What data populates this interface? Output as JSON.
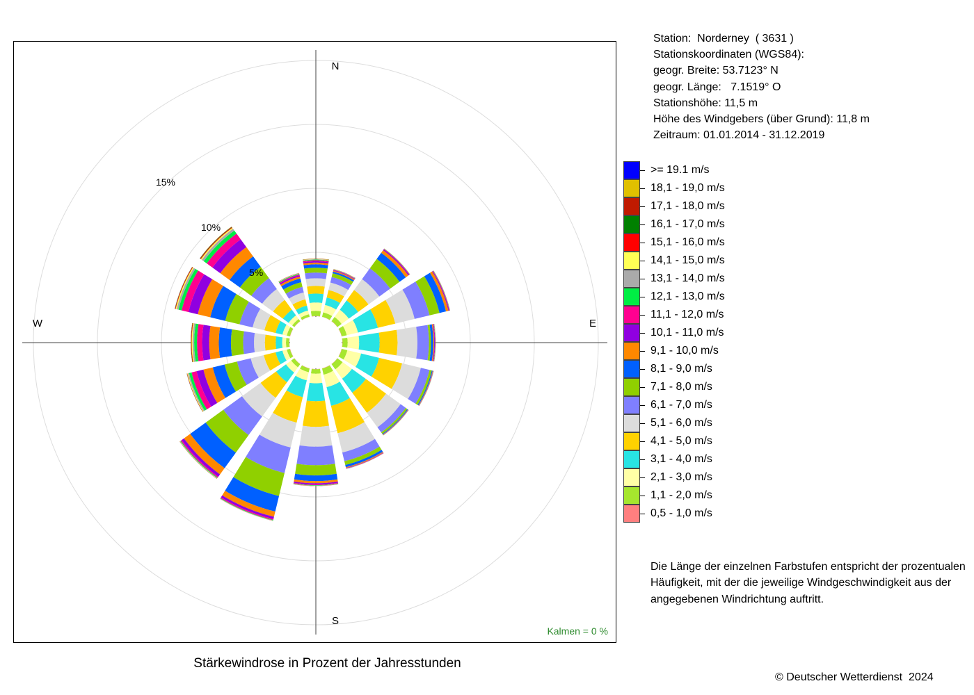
{
  "chart_data": {
    "type": "windrose",
    "title": "Stärkewindrose in Prozent der Jahresstunden",
    "directions": [
      "N",
      "NNE",
      "NE",
      "ENE",
      "E",
      "ESE",
      "SE",
      "SSE",
      "S",
      "SSW",
      "SW",
      "WSW",
      "W",
      "WNW",
      "NW",
      "NNW"
    ],
    "direction_labels": {
      "N": "N",
      "E": "E",
      "S": "S",
      "W": "W"
    },
    "radial_ticks": [
      {
        "value": 5,
        "label": "5%"
      },
      {
        "value": 10,
        "label": "10%"
      },
      {
        "value": 15,
        "label": "15%"
      }
    ],
    "radial_unit": "%",
    "calm_label": "Kalmen  =  0 %",
    "calm_percent": 0,
    "speed_classes": [
      {
        "label": "0,5 - 1,0 m/s",
        "color": "#ff7f7f"
      },
      {
        "label": "1,1 - 2,0 m/s",
        "color": "#a6e62e"
      },
      {
        "label": "2,1 - 3,0 m/s",
        "color": "#ffffa6"
      },
      {
        "label": "3,1 - 4,0 m/s",
        "color": "#28e4e4"
      },
      {
        "label": "4,1 - 5,0 m/s",
        "color": "#ffd200"
      },
      {
        "label": "5,1 - 6,0 m/s",
        "color": "#dcdcdc"
      },
      {
        "label": "6,1 - 7,0 m/s",
        "color": "#7f7fff"
      },
      {
        "label": "7,1 - 8,0 m/s",
        "color": "#90d000"
      },
      {
        "label": "8,1 - 9,0 m/s",
        "color": "#0060ff"
      },
      {
        "label": "9,1 - 10,0 m/s",
        "color": "#ff8800"
      },
      {
        "label": "10,1 - 11,0 m/s",
        "color": "#9000e0"
      },
      {
        "label": "11,1 - 12,0 m/s",
        "color": "#ff0090"
      },
      {
        "label": "12,1 - 13,0 m/s",
        "color": "#00ee44"
      },
      {
        "label": "13,1 - 14,0 m/s",
        "color": "#aaaaaa"
      },
      {
        "label": "14,1 - 15,0 m/s",
        "color": "#ffff55"
      },
      {
        "label": "15,1 - 16,0 m/s",
        "color": "#ff0000"
      },
      {
        "label": "16,1 - 17,0 m/s",
        "color": "#008000"
      },
      {
        "label": "17,1 - 18,0 m/s",
        "color": "#c01a00"
      },
      {
        "label": "18,1 - 19,0 m/s",
        "color": "#e0c000"
      },
      {
        "label": ">= 19.1 m/s",
        "color": "#0000ff"
      }
    ],
    "series": [
      {
        "direction": "N",
        "values": [
          0.02,
          0.4,
          0.65,
          0.7,
          0.6,
          0.6,
          0.45,
          0.38,
          0.26,
          0.14,
          0.1,
          0.08,
          0.05,
          0.03,
          0.02,
          0.01,
          0.01,
          0.01,
          0.005,
          0.005
        ]
      },
      {
        "direction": "NNE",
        "values": [
          0.02,
          0.35,
          0.6,
          0.6,
          0.6,
          0.6,
          0.45,
          0.3,
          0.13,
          0.08,
          0.04,
          0.03,
          0.02,
          0.01,
          0.01,
          0.005,
          0.005,
          0.005,
          0.003,
          0.002
        ]
      },
      {
        "direction": "NE",
        "values": [
          0.02,
          0.4,
          0.7,
          0.9,
          1.0,
          1.05,
          1.05,
          0.9,
          0.6,
          0.25,
          0.08,
          0.04,
          0.02,
          0.01,
          0.005,
          0.005,
          0.002,
          0.002,
          0.001,
          0.001
        ]
      },
      {
        "direction": "ENE",
        "values": [
          0.02,
          0.4,
          0.9,
          1.6,
          1.4,
          1.55,
          1.2,
          0.8,
          0.52,
          0.2,
          0.06,
          0.03,
          0.02,
          0.01,
          0.005,
          0.005,
          0.002,
          0.002,
          0.001,
          0.001
        ]
      },
      {
        "direction": "E",
        "values": [
          0.02,
          0.4,
          0.9,
          1.6,
          1.4,
          1.55,
          0.9,
          0.16,
          0.18,
          0.07,
          0.05,
          0.03,
          0.02,
          0.01,
          0.005,
          0.005,
          0.002,
          0.002,
          0.001,
          0.001
        ]
      },
      {
        "direction": "ESE",
        "values": [
          0.02,
          0.45,
          1.1,
          1.45,
          1.85,
          1.5,
          0.7,
          0.18,
          0.07,
          0.03,
          0.02,
          0.01,
          0.01,
          0.005,
          0.005,
          0.003,
          0.002,
          0.002,
          0.001,
          0.001
        ]
      },
      {
        "direction": "SE",
        "values": [
          0.02,
          0.5,
          0.9,
          1.35,
          1.95,
          1.4,
          0.5,
          0.14,
          0.06,
          0.03,
          0.02,
          0.01,
          0.01,
          0.005,
          0.005,
          0.003,
          0.002,
          0.002,
          0.001,
          0.001
        ]
      },
      {
        "direction": "SSE",
        "values": [
          0.02,
          0.5,
          1.0,
          1.5,
          2.2,
          1.55,
          0.7,
          0.3,
          0.18,
          0.06,
          0.03,
          0.02,
          0.01,
          0.005,
          0.005,
          0.003,
          0.002,
          0.002,
          0.001,
          0.001
        ]
      },
      {
        "direction": "S",
        "values": [
          0.02,
          0.35,
          0.75,
          1.4,
          2.0,
          1.55,
          1.45,
          0.8,
          0.44,
          0.17,
          0.1,
          0.05,
          0.03,
          0.02,
          0.01,
          0.005,
          0.003,
          0.002,
          0.001,
          0.001
        ]
      },
      {
        "direction": "SSW",
        "values": [
          0.02,
          0.3,
          0.65,
          1.35,
          2.05,
          2.0,
          2.05,
          1.85,
          1.25,
          0.42,
          0.17,
          0.08,
          0.04,
          0.02,
          0.01,
          0.005,
          0.003,
          0.002,
          0.001,
          0.001
        ]
      },
      {
        "direction": "SW",
        "values": [
          0.02,
          0.3,
          0.5,
          0.95,
          1.5,
          1.8,
          1.8,
          1.7,
          1.5,
          0.6,
          0.22,
          0.09,
          0.05,
          0.03,
          0.02,
          0.01,
          0.005,
          0.003,
          0.002,
          0.001
        ]
      },
      {
        "direction": "WSW",
        "values": [
          0.02,
          0.25,
          0.35,
          0.55,
          0.95,
          1.05,
          1.1,
          1.0,
          0.95,
          0.75,
          0.55,
          0.4,
          0.2,
          0.1,
          0.05,
          0.02,
          0.01,
          0.005,
          0.003,
          0.002
        ]
      },
      {
        "direction": "W",
        "values": [
          0.02,
          0.25,
          0.3,
          0.5,
          0.85,
          0.85,
          0.85,
          0.95,
          0.95,
          0.75,
          0.55,
          0.4,
          0.22,
          0.13,
          0.07,
          0.04,
          0.02,
          0.01,
          0.005,
          0.003
        ]
      },
      {
        "direction": "WNW",
        "values": [
          0.02,
          0.25,
          0.35,
          0.55,
          0.9,
          0.95,
          1.05,
          1.15,
          1.2,
          1.0,
          0.75,
          0.55,
          0.25,
          0.15,
          0.08,
          0.04,
          0.02,
          0.01,
          0.005,
          0.003
        ]
      },
      {
        "direction": "NW",
        "values": [
          0.02,
          0.2,
          0.35,
          0.55,
          0.95,
          1.05,
          1.05,
          1.1,
          1.0,
          0.9,
          0.75,
          0.55,
          0.3,
          0.18,
          0.09,
          0.05,
          0.03,
          0.02,
          0.01,
          0.005
        ]
      },
      {
        "direction": "NNW",
        "values": [
          0.02,
          0.2,
          0.3,
          0.4,
          0.5,
          0.55,
          0.45,
          0.38,
          0.3,
          0.15,
          0.1,
          0.07,
          0.05,
          0.03,
          0.02,
          0.01,
          0.005,
          0.003,
          0.002,
          0.001
        ]
      }
    ]
  },
  "station_info": {
    "station": "Station:  Norderney  ( 3631 )",
    "coords_heading": "Stationskoordinaten (WGS84):",
    "latitude": "geogr. Breite: 53.7123° N",
    "longitude": "geogr. Länge:   7.1519° O",
    "elevation": "Stationshöhe: 11,5 m",
    "sensor_height": "Höhe des Windgebers (über Grund): 11,8 m",
    "period": "Zeitraum: 01.01.2014 - 31.12.2019"
  },
  "legend_note": "Die Länge der einzelnen Farbstufen entspricht der prozentualen Häufigkeit, mit der die jeweilige Windgeschwindigkeit aus der angegebenen Windrichtung auftritt.",
  "copyright": "© Deutscher Wetterdienst  2024"
}
